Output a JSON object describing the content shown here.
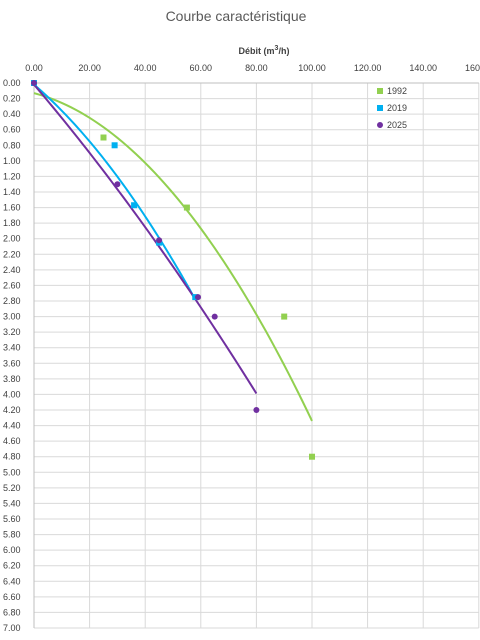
{
  "chart_data": {
    "type": "scatter",
    "title": "Courbe caractéristique",
    "xlabel": "Débit (m3/h)",
    "xlabel_parts": {
      "base": "Débit (m",
      "sup": "3",
      "tail": "/h)"
    },
    "ylabel": "",
    "x_axis_position": "top",
    "y_axis_reversed": true,
    "xlim": [
      0,
      160
    ],
    "ylim": [
      0,
      7
    ],
    "x_ticks": [
      "0.00",
      "20.00",
      "40.00",
      "60.00",
      "80.00",
      "100.00",
      "120.00",
      "140.00",
      "160.00"
    ],
    "y_ticks": [
      "0.00",
      "0.20",
      "0.40",
      "0.60",
      "0.80",
      "1.00",
      "1.20",
      "1.40",
      "1.60",
      "1.80",
      "2.00",
      "2.20",
      "2.40",
      "2.60",
      "2.80",
      "3.00",
      "3.20",
      "3.40",
      "3.60",
      "3.80",
      "4.00",
      "4.20",
      "4.40",
      "4.60",
      "4.80",
      "5.00",
      "5.20",
      "5.40",
      "5.60",
      "5.80",
      "6.00",
      "6.20",
      "6.40",
      "6.60",
      "6.80",
      "7.00"
    ],
    "grid": true,
    "legend_position": "top-right",
    "series": [
      {
        "name": "1992",
        "color": "#92d050",
        "marker": "square",
        "points": [
          [
            0,
            0
          ],
          [
            25,
            0.7
          ],
          [
            55,
            1.6
          ],
          [
            90,
            3.0
          ],
          [
            100,
            4.8
          ]
        ],
        "trend": {
          "type": "poly2",
          "x_from": 0,
          "x_to": 100,
          "coef": [
            0.13,
            0.0093,
            0.000328
          ]
        }
      },
      {
        "name": "2019",
        "color": "#00b0f0",
        "marker": "square",
        "points": [
          [
            0,
            0
          ],
          [
            29,
            0.8
          ],
          [
            36,
            1.57
          ],
          [
            45,
            2.05
          ],
          [
            58,
            2.75
          ]
        ],
        "trend": {
          "type": "poly2",
          "x_from": 0,
          "x_to": 58,
          "coef": [
            0.02,
            0.0307,
            0.000291
          ]
        }
      },
      {
        "name": "2025",
        "color": "#7030a0",
        "marker": "circle",
        "points": [
          [
            0,
            0
          ],
          [
            30,
            1.3
          ],
          [
            45,
            2.02
          ],
          [
            59,
            2.75
          ],
          [
            65,
            3.0
          ],
          [
            80,
            4.2
          ]
        ],
        "trend": {
          "type": "poly2",
          "x_from": 0,
          "x_to": 80,
          "coef": [
            0.02,
            0.042,
            9.5e-05
          ]
        }
      }
    ]
  }
}
